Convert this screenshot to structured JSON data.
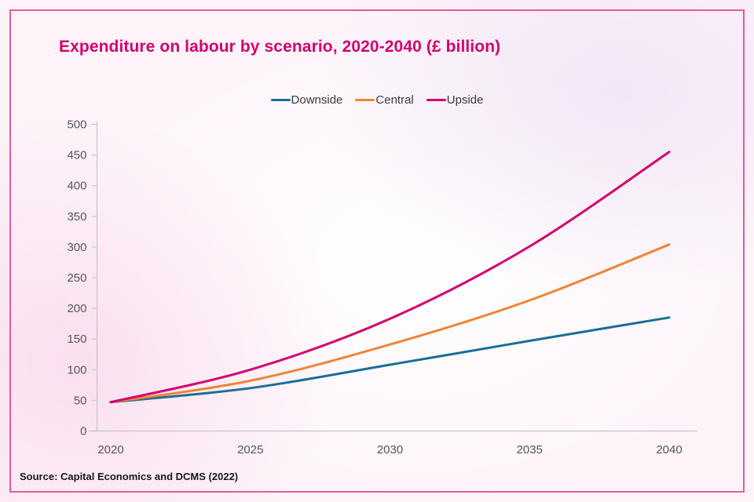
{
  "title": {
    "text": "Expenditure on labour by scenario, 2020-2040 (£ billion)",
    "color": "#d40070"
  },
  "source": {
    "text": "Source: Capital Economics and DCMS (2022)"
  },
  "frame": {
    "border_color": "#e75aa0"
  },
  "chart_data": {
    "type": "line",
    "title": "Expenditure on labour by scenario, 2020-2040 (£ billion)",
    "xlabel": "",
    "ylabel": "",
    "x": [
      2020,
      2025,
      2030,
      2035,
      2040
    ],
    "series": [
      {
        "name": "Downside",
        "color": "#1b6e96",
        "values": [
          47,
          70,
          108,
          147,
          185
        ]
      },
      {
        "name": "Central",
        "color": "#ee8434",
        "values": [
          47,
          82,
          141,
          213,
          304
        ]
      },
      {
        "name": "Upside",
        "color": "#d40070",
        "values": [
          47,
          100,
          183,
          301,
          455
        ]
      }
    ],
    "ylim": [
      0,
      500
    ],
    "yticks": [
      0,
      50,
      100,
      150,
      200,
      250,
      300,
      350,
      400,
      450,
      500
    ],
    "xticks": [
      2020,
      2025,
      2030,
      2035,
      2040
    ],
    "grid": false,
    "legend_position": "top-center",
    "axis_color": "#c6c6ce",
    "tick_label_color": "#55555d"
  }
}
